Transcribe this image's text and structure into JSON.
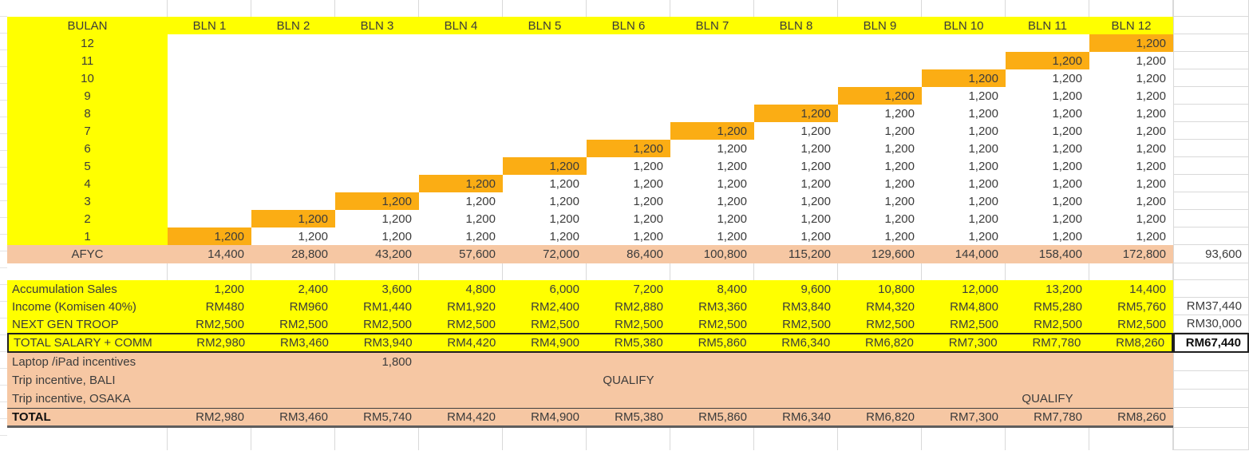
{
  "colors": {
    "yellow": "#FFFF00",
    "orange": "#FBAD14",
    "peach": "#F6C7A3",
    "grid": "#D9D9D9",
    "text": "#3B3B3B"
  },
  "header": {
    "label": "BULAN",
    "months": [
      "BLN 1",
      "BLN 2",
      "BLN 3",
      "BLN 4",
      "BLN 5",
      "BLN 6",
      "BLN 7",
      "BLN 8",
      "BLN 9",
      "BLN 10",
      "BLN 11",
      "BLN 12"
    ]
  },
  "staircase": {
    "unit_value": "1,200",
    "rows": [
      12,
      11,
      10,
      9,
      8,
      7,
      6,
      5,
      4,
      3,
      2,
      1
    ]
  },
  "afyc": {
    "label": "AFYC",
    "values": [
      "14,400",
      "28,800",
      "43,200",
      "57,600",
      "72,000",
      "86,400",
      "100,800",
      "115,200",
      "129,600",
      "144,000",
      "158,400",
      "172,800"
    ],
    "side": "93,600"
  },
  "summary_rows": [
    {
      "id": "accumulation-sales",
      "label": "Accumulation Sales",
      "theme": "yellow",
      "values": [
        "1,200",
        "2,400",
        "3,600",
        "4,800",
        "6,000",
        "7,200",
        "8,400",
        "9,600",
        "10,800",
        "12,000",
        "13,200",
        "14,400"
      ],
      "side": ""
    },
    {
      "id": "income-komisen",
      "label": "Income (Komisen 40%)",
      "theme": "yellow",
      "values": [
        "RM480",
        "RM960",
        "RM1,440",
        "RM1,920",
        "RM2,400",
        "RM2,880",
        "RM3,360",
        "RM3,840",
        "RM4,320",
        "RM4,800",
        "RM5,280",
        "RM5,760"
      ],
      "side": "RM37,440"
    },
    {
      "id": "next-gen-troop",
      "label": "NEXT GEN TROOP",
      "theme": "yellow",
      "values": [
        "RM2,500",
        "RM2,500",
        "RM2,500",
        "RM2,500",
        "RM2,500",
        "RM2,500",
        "RM2,500",
        "RM2,500",
        "RM2,500",
        "RM2,500",
        "RM2,500",
        "RM2,500"
      ],
      "side": "RM30,000"
    },
    {
      "id": "total-salary-comm",
      "label": "TOTAL SALARY + COMM",
      "theme": "yellow",
      "boxed": true,
      "values": [
        "RM2,980",
        "RM3,460",
        "RM3,940",
        "RM4,420",
        "RM4,900",
        "RM5,380",
        "RM5,860",
        "RM6,340",
        "RM6,820",
        "RM7,300",
        "RM7,780",
        "RM8,260"
      ],
      "side": "RM67,440",
      "side_boxed": true
    },
    {
      "id": "laptop-ipad-incentives",
      "label": "Laptop /iPad incentives",
      "theme": "peach",
      "values": [
        "",
        "",
        "1,800",
        "",
        "",
        "",
        "",
        "",
        "",
        "",
        "",
        ""
      ],
      "side": ""
    },
    {
      "id": "trip-incentive-bali",
      "label": "Trip incentive, BALI",
      "theme": "peach",
      "values": [
        "",
        "",
        "",
        "",
        "",
        "QUALIFY",
        "",
        "",
        "",
        "",
        "",
        ""
      ],
      "centered_cols": [
        6
      ],
      "side": ""
    },
    {
      "id": "trip-incentive-osaka",
      "label": "Trip incentive, OSAKA",
      "theme": "peach",
      "values": [
        "",
        "",
        "",
        "",
        "",
        "",
        "",
        "",
        "",
        "",
        "QUALIFY",
        ""
      ],
      "centered_cols": [
        11
      ],
      "side": ""
    },
    {
      "id": "grand-total",
      "label": "TOTAL",
      "theme": "peach",
      "total": true,
      "label_bold": true,
      "values": [
        "RM2,980",
        "RM3,460",
        "RM5,740",
        "RM4,420",
        "RM4,900",
        "RM5,380",
        "RM5,860",
        "RM6,340",
        "RM6,820",
        "RM7,300",
        "RM7,780",
        "RM8,260"
      ],
      "side": ""
    }
  ]
}
